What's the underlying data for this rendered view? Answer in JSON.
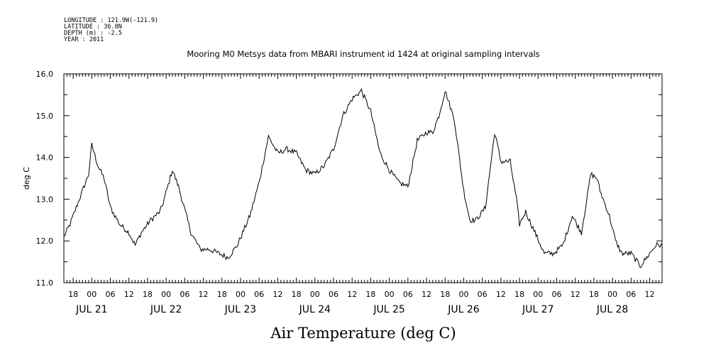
{
  "header": {
    "longitude": "LONGITUDE : 121.9W(-121.9)",
    "latitude": "LATITUDE : 36.8N",
    "depth": "DEPTH (m) : -2.5",
    "year": "YEAR : 2011"
  },
  "chart_data": {
    "type": "line",
    "title": "Mooring M0 Metsys data from MBARI instrument id 1424 at original sampling intervals",
    "xlabel": "Air Temperature (deg C)",
    "ylabel": "deg C",
    "ylim": [
      11.0,
      16.0
    ],
    "y_ticks": [
      "11.0",
      "12.0",
      "13.0",
      "14.0",
      "15.0",
      "16.0"
    ],
    "x_range_hours_note": "2011-07-20T15:00 to 2011-07-28T16:00",
    "x_tick_labels": [
      "18",
      "00",
      "06",
      "12",
      "18",
      "00",
      "06",
      "12",
      "18",
      "00",
      "06",
      "12",
      "18",
      "00",
      "06",
      "12",
      "18",
      "00",
      "06",
      "12",
      "18",
      "00",
      "06",
      "12",
      "18",
      "00",
      "06",
      "12",
      "18",
      "00",
      "06",
      "12"
    ],
    "day_labels": [
      "JUL 21",
      "JUL 22",
      "JUL 23",
      "JUL 24",
      "JUL 25",
      "JUL 26",
      "JUL 27",
      "JUL 28"
    ],
    "grid": false,
    "series": [
      {
        "x": [
          "2011-07-20T15:00",
          "2011-07-20T17:00",
          "2011-07-20T20:00",
          "2011-07-20T23:00",
          "2011-07-21T00:00",
          "2011-07-21T02:00",
          "2011-07-21T04:00",
          "2011-07-21T06:00",
          "2011-07-21T09:00",
          "2011-07-21T12:00",
          "2011-07-21T14:00",
          "2011-07-21T16:00",
          "2011-07-21T19:00",
          "2011-07-21T22:00",
          "2011-07-21T23:00",
          "2011-07-22T02:00",
          "2011-07-22T04:00",
          "2011-07-22T08:00",
          "2011-07-22T11:00",
          "2011-07-22T14:00",
          "2011-07-22T17:00",
          "2011-07-22T20:00",
          "2011-07-22T23:00",
          "2011-07-23T03:00",
          "2011-07-23T06:00",
          "2011-07-23T09:00",
          "2011-07-23T12:00",
          "2011-07-23T15:00",
          "2011-07-23T18:00",
          "2011-07-23T21:00",
          "2011-07-24T00:00",
          "2011-07-24T03:00",
          "2011-07-24T06:00",
          "2011-07-24T09:00",
          "2011-07-24T12:00",
          "2011-07-24T15:00",
          "2011-07-24T18:00",
          "2011-07-24T21:00",
          "2011-07-25T00:00",
          "2011-07-25T03:00",
          "2011-07-25T06:00",
          "2011-07-25T09:00",
          "2011-07-25T12:00",
          "2011-07-25T14:00",
          "2011-07-25T16:00",
          "2011-07-25T18:00",
          "2011-07-25T21:00",
          "2011-07-26T00:00",
          "2011-07-26T02:00",
          "2011-07-26T04:00",
          "2011-07-26T07:00",
          "2011-07-26T10:00",
          "2011-07-26T12:00",
          "2011-07-26T15:00",
          "2011-07-26T17:00",
          "2011-07-26T18:00",
          "2011-07-26T20:00",
          "2011-07-26T23:00",
          "2011-07-27T02:00",
          "2011-07-27T05:00",
          "2011-07-27T08:00",
          "2011-07-27T11:00",
          "2011-07-27T14:00",
          "2011-07-27T17:00",
          "2011-07-27T19:00",
          "2011-07-27T20:00",
          "2011-07-27T23:00",
          "2011-07-28T01:00",
          "2011-07-28T03:00",
          "2011-07-28T06:00",
          "2011-07-28T09:00",
          "2011-07-28T11:00",
          "2011-07-28T14:00",
          "2011-07-28T16:00"
        ],
        "y": [
          12.1,
          12.4,
          13.0,
          13.6,
          14.3,
          13.8,
          13.5,
          12.8,
          12.4,
          12.2,
          11.9,
          12.2,
          12.5,
          12.7,
          12.9,
          13.7,
          13.3,
          12.2,
          11.8,
          11.8,
          11.7,
          11.6,
          11.9,
          12.6,
          13.4,
          14.5,
          14.1,
          14.2,
          14.1,
          13.7,
          13.6,
          13.8,
          14.2,
          15.0,
          15.4,
          15.6,
          15.1,
          14.1,
          13.7,
          13.4,
          13.3,
          14.4,
          14.6,
          14.6,
          15.0,
          15.6,
          14.9,
          13.2,
          12.5,
          12.5,
          12.8,
          14.6,
          13.9,
          13.9,
          13.0,
          12.4,
          12.7,
          12.2,
          11.7,
          11.7,
          11.9,
          12.6,
          12.2,
          13.6,
          13.5,
          13.2,
          12.6,
          12.0,
          11.7,
          11.7,
          11.4,
          11.6,
          11.9,
          11.9
        ]
      }
    ]
  }
}
